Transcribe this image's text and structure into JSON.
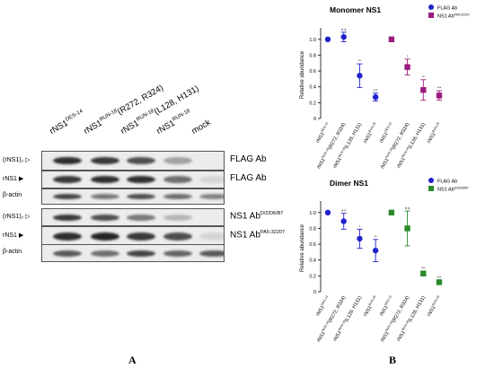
{
  "panel_a": {
    "letter": "A",
    "lanes": [
      {
        "base": "rNS1",
        "sup": "DES-14",
        "suffix": ""
      },
      {
        "base": "rNS1",
        "sup": "RUN-18",
        "suffix": "(R272, R324)"
      },
      {
        "base": "rNS1",
        "sup": "RUN-18",
        "suffix": "(L128, H131)"
      },
      {
        "base": "rNS1",
        "sup": "RUN-18",
        "suffix": ""
      },
      {
        "base": "mock",
        "sup": "",
        "suffix": ""
      }
    ],
    "blots": [
      {
        "left_label": "(rNS1)₂ ▷",
        "right_base": "FLAG Ab",
        "right_sup": "",
        "bands": [
          0.9,
          0.85,
          0.75,
          0.35,
          0.0
        ]
      },
      {
        "left_label": "rNS1 ▶",
        "right_base": "FLAG Ab",
        "right_sup": "",
        "bands": [
          0.85,
          0.9,
          0.9,
          0.6,
          0.1
        ]
      },
      {
        "left_label": "β-actin",
        "right_base": "",
        "right_sup": "",
        "bands": [
          0.8,
          0.55,
          0.75,
          0.6,
          0.5
        ]
      },
      {
        "left_label": "(rNS1)₂ ▷",
        "right_base": "NS1 Ab",
        "right_sup": "D/2/D6/B7",
        "bands": [
          0.85,
          0.75,
          0.55,
          0.25,
          0.0
        ]
      },
      {
        "left_label": "rNS1 ▶",
        "right_base": "NS1 Ab",
        "right_sup": "PA5-32207",
        "bands": [
          0.9,
          0.95,
          0.85,
          0.75,
          0.1
        ]
      },
      {
        "left_label": "β-actin",
        "right_base": "",
        "right_sup": "",
        "bands": [
          0.7,
          0.6,
          0.8,
          0.65,
          0.7
        ]
      }
    ]
  },
  "panel_b": {
    "letter": "B",
    "chart_data": [
      {
        "type": "scatter",
        "title": "Monomer NS1",
        "ylabel": "Relative abundance",
        "ylim": [
          0,
          1.1
        ],
        "yticks": [
          "0",
          "0.2",
          "0.4",
          "0.6",
          "0.8",
          "1.0"
        ],
        "categories": [
          {
            "base": "rNS1",
            "sup": "DES-14",
            "suffix": ""
          },
          {
            "base": "rNS1",
            "sup": "RUN-18",
            "suffix": "(R272, R324)"
          },
          {
            "base": "rNS1",
            "sup": "RUN-18",
            "suffix": "(L128, H131)"
          },
          {
            "base": "rNS1",
            "sup": "RUN-18",
            "suffix": ""
          },
          {
            "base": "rNS1",
            "sup": "DES-14",
            "suffix": ""
          },
          {
            "base": "rNS1",
            "sup": "RUN-18",
            "suffix": "(R272, R324)"
          },
          {
            "base": "rNS1",
            "sup": "RUN-18",
            "suffix": "(L128, H131)"
          },
          {
            "base": "rNS1",
            "sup": "RUN-18",
            "suffix": ""
          }
        ],
        "legend": [
          {
            "label": "FLAG Ab",
            "sup": "",
            "color": "#2222cc",
            "marker": "circle"
          },
          {
            "label": "NS1 Ab",
            "sup": "PA5-32207",
            "color": "#9b1b7e",
            "marker": "square"
          }
        ],
        "legend_position": "top-right",
        "series": [
          {
            "name": "FLAG Ab",
            "marker": "circle",
            "color": "#2222cc",
            "x_index": [
              0,
              1,
              2,
              3
            ],
            "values": [
              1.0,
              1.03,
              0.54,
              0.27
            ],
            "err": [
              0.0,
              0.06,
              0.15,
              0.05
            ],
            "labels": [
              "",
              "n.s",
              "**",
              "***"
            ]
          },
          {
            "name": "NS1 Ab",
            "marker": "square",
            "color": "#9b1b7e",
            "x_index": [
              4,
              5,
              6,
              7
            ],
            "values": [
              1.0,
              0.65,
              0.36,
              0.29
            ],
            "err": [
              0.0,
              0.1,
              0.13,
              0.06
            ],
            "labels": [
              "",
              "*",
              "**",
              "***"
            ]
          }
        ]
      },
      {
        "type": "scatter",
        "title": "Dimer NS1",
        "ylabel": "Relative abundance",
        "ylim": [
          0,
          1.1
        ],
        "yticks": [
          "0",
          "0.2",
          "0.4",
          "0.6",
          "0.8",
          "1.0"
        ],
        "categories": [
          {
            "base": "rNS1",
            "sup": "DES-14",
            "suffix": ""
          },
          {
            "base": "rNS1",
            "sup": "RUN-18",
            "suffix": "(R272, R324)"
          },
          {
            "base": "rNS1",
            "sup": "RUN-18",
            "suffix": "(L128, H131)"
          },
          {
            "base": "rNS1",
            "sup": "RUN-18",
            "suffix": ""
          },
          {
            "base": "rNS1",
            "sup": "DES-14",
            "suffix": ""
          },
          {
            "base": "rNS1",
            "sup": "RUN-18",
            "suffix": "(R272, R324)"
          },
          {
            "base": "rNS1",
            "sup": "RUN-18",
            "suffix": "(L128, H131)"
          },
          {
            "base": "rNS1",
            "sup": "RUN-18",
            "suffix": ""
          }
        ],
        "legend": [
          {
            "label": "FLAG Ab",
            "sup": "",
            "color": "#2222cc",
            "marker": "circle"
          },
          {
            "label": "NS1 Ab",
            "sup": "D/2/D6/B7",
            "color": "#2a8a2a",
            "marker": "square"
          }
        ],
        "legend_position": "top-right",
        "series": [
          {
            "name": "FLAG Ab",
            "marker": "circle",
            "color": "#2222cc",
            "x_index": [
              0,
              1,
              2,
              3
            ],
            "values": [
              1.0,
              0.89,
              0.67,
              0.52
            ],
            "err": [
              0.0,
              0.1,
              0.12,
              0.14
            ],
            "labels": [
              "",
              "n.s",
              "*",
              "**"
            ]
          },
          {
            "name": "NS1 Ab",
            "marker": "square",
            "color": "#2a8a2a",
            "x_index": [
              4,
              5,
              6,
              7
            ],
            "values": [
              1.0,
              0.8,
              0.23,
              0.12
            ],
            "err": [
              0.0,
              0.22,
              0.03,
              0.02
            ],
            "labels": [
              "",
              "n.s",
              "***",
              "***"
            ]
          }
        ]
      }
    ]
  }
}
